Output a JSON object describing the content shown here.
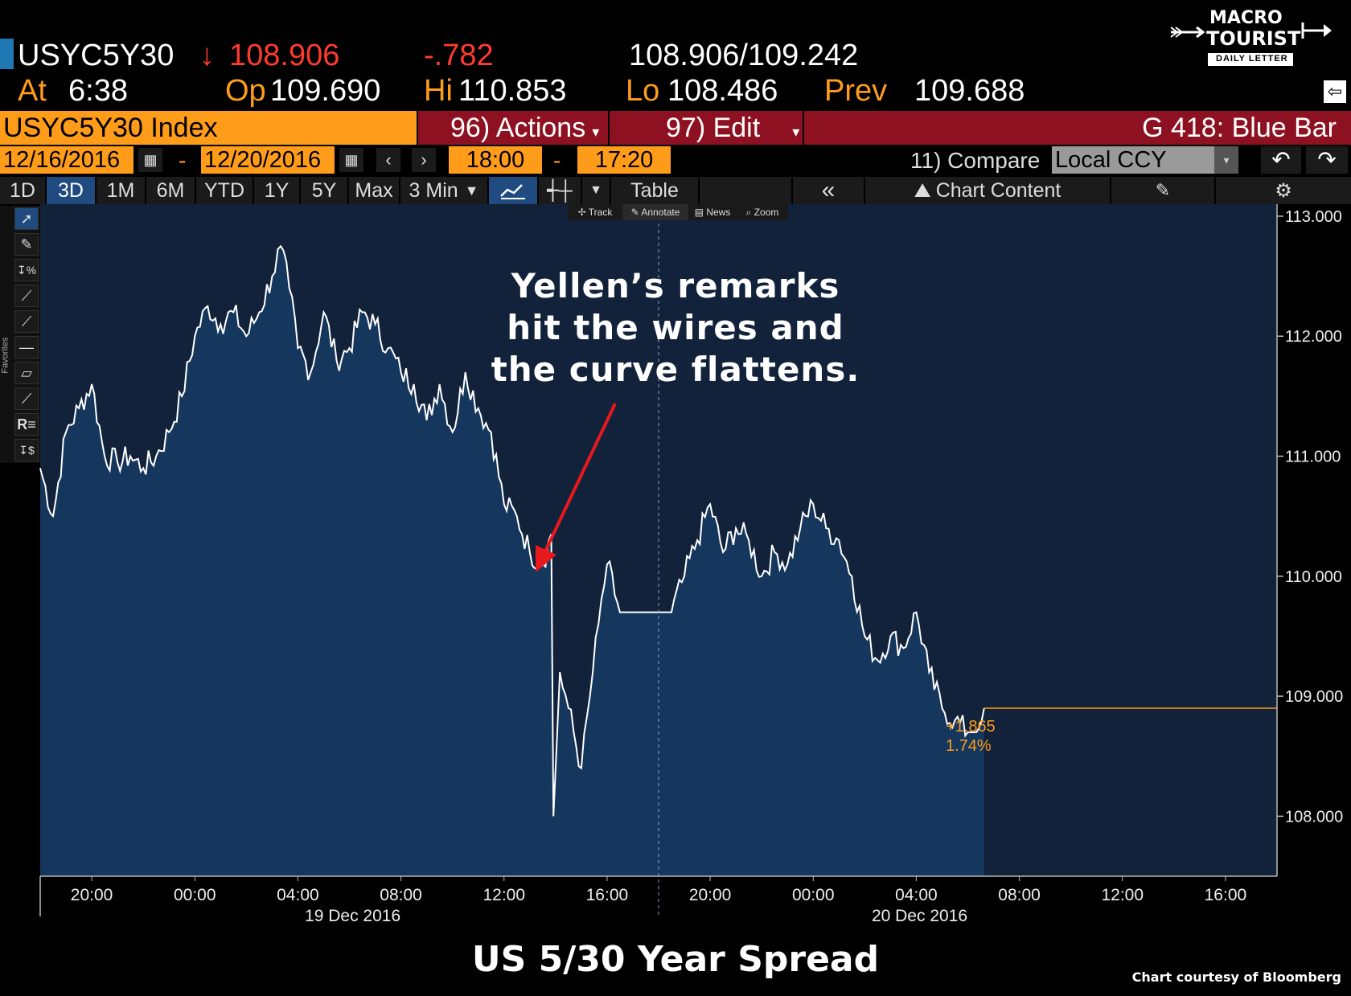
{
  "header": {
    "ticker": "USYC5Y30",
    "last_arrow": "↓",
    "last": "108.906",
    "change": "-.782",
    "bid_ask": "108.906/109.242",
    "at_label": "At",
    "time": "6:38",
    "op_label": "Op",
    "op": "109.690",
    "hi_label": "Hi",
    "hi": "110.853",
    "lo_label": "Lo",
    "lo": "108.486",
    "prev_label": "Prev",
    "prev": "109.688"
  },
  "logo": {
    "line1": "MACRO",
    "line2": "TOURIST",
    "line3": "DAILY LETTER"
  },
  "command_bar": {
    "security": "USYC5Y30 Index",
    "actions": "96) Actions",
    "edit": "97) Edit",
    "title": "G 418: Blue Bar"
  },
  "range_bar": {
    "start_date": "12/16/2016",
    "end_date": "12/20/2016",
    "dash": "-",
    "start_time": "18:00",
    "end_time": "17:20",
    "compare": "11) Compare",
    "currency": "Local CCY"
  },
  "toolbar": {
    "periods": [
      "1D",
      "3D",
      "1M",
      "6M",
      "YTD",
      "1Y",
      "5Y",
      "Max"
    ],
    "active_period": "3D",
    "interval": "3 Min",
    "table": "Table",
    "chart_content": "Chart Content"
  },
  "chart_modes": [
    "Track",
    "Annotate",
    "News",
    "Zoom"
  ],
  "sidebar_label": "Favorites",
  "annotation": {
    "line1": "Yellen’s remarks",
    "line2": "hit the wires and",
    "line3": "the curve flattens.",
    "arrow_color": "#e8191c"
  },
  "last_change": "+1.865",
  "last_change_pct": "1.74%",
  "caption": "US 5/30 Year Spread",
  "credit": "Chart courtesy of Bloomberg",
  "colors": {
    "accent": "#ff9c1a",
    "command_red": "#8e1122",
    "plot_bg": "#12223a",
    "area_fill": "#15375e",
    "line": "#ffffff"
  },
  "chart_data": {
    "type": "area",
    "ylim": [
      107.5,
      113.1
    ],
    "yticks": [
      "113.000",
      "112.000",
      "111.000",
      "110.000",
      "109.000",
      "108.000"
    ],
    "xticks": [
      "20:00",
      "00:00",
      "04:00",
      "08:00",
      "12:00",
      "16:00",
      "20:00",
      "00:00",
      "04:00",
      "08:00",
      "12:00",
      "16:00"
    ],
    "date_labels": [
      "19 Dec 2016",
      "20 Dec 2016"
    ],
    "x": [
      "12/18 18:00",
      "12/18 18:30",
      "12/18 19:00",
      "12/18 19:30",
      "12/18 20:00",
      "12/18 20:30",
      "12/18 21:00",
      "12/18 21:30",
      "12/18 22:00",
      "12/18 22:30",
      "12/18 23:00",
      "12/18 23:30",
      "12/19 00:00",
      "12/19 00:30",
      "12/19 01:00",
      "12/19 01:30",
      "12/19 02:00",
      "12/19 02:30",
      "12/19 03:00",
      "12/19 03:20",
      "12/19 03:40",
      "12/19 04:00",
      "12/19 04:30",
      "12/19 05:00",
      "12/19 05:30",
      "12/19 06:00",
      "12/19 06:30",
      "12/19 07:00",
      "12/19 07:30",
      "12/19 08:00",
      "12/19 08:30",
      "12/19 09:00",
      "12/19 09:30",
      "12/19 10:00",
      "12/19 10:30",
      "12/19 11:00",
      "12/19 11:30",
      "12/19 12:00",
      "12/19 12:30",
      "12/19 13:00",
      "12/19 13:30",
      "12/19 13:50",
      "12/19 13:55",
      "12/19 14:10",
      "12/19 14:30",
      "12/19 15:00",
      "12/19 15:20",
      "12/19 15:40",
      "12/19 16:00",
      "12/19 16:30",
      "12/19 17:00",
      "12/19 17:30",
      "12/19 18:00",
      "12/19 18:30",
      "12/19 19:00",
      "12/19 19:30",
      "12/19 20:00",
      "12/19 20:30",
      "12/19 21:00",
      "12/19 21:30",
      "12/19 22:00",
      "12/19 22:30",
      "12/19 23:00",
      "12/19 23:30",
      "12/20 00:00",
      "12/20 00:30",
      "12/20 01:00",
      "12/20 01:30",
      "12/20 02:00",
      "12/20 02:30",
      "12/20 03:00",
      "12/20 03:30",
      "12/20 04:00",
      "12/20 04:30",
      "12/20 05:00",
      "12/20 05:30",
      "12/20 06:00",
      "12/20 06:20",
      "12/20 06:38"
    ],
    "y": [
      110.9,
      110.5,
      111.2,
      111.4,
      111.6,
      111.0,
      110.95,
      111.0,
      110.9,
      111.0,
      111.2,
      111.5,
      112.0,
      112.25,
      112.1,
      112.2,
      112.0,
      112.2,
      112.5,
      112.75,
      112.4,
      111.9,
      111.7,
      112.2,
      111.8,
      111.9,
      112.2,
      112.1,
      111.9,
      111.7,
      111.6,
      111.3,
      111.6,
      111.2,
      111.7,
      111.4,
      111.2,
      110.6,
      110.5,
      110.2,
      110.1,
      110.35,
      108.0,
      109.2,
      108.9,
      108.4,
      109.0,
      109.6,
      110.1,
      109.7,
      109.7,
      109.7,
      109.7,
      109.7,
      110.0,
      110.3,
      110.6,
      110.2,
      110.4,
      110.3,
      110.0,
      110.2,
      110.1,
      110.4,
      110.6,
      110.4,
      110.3,
      110.0,
      109.5,
      109.3,
      109.5,
      109.4,
      109.7,
      109.2,
      108.9,
      108.8,
      108.7,
      108.7,
      108.9
    ]
  }
}
